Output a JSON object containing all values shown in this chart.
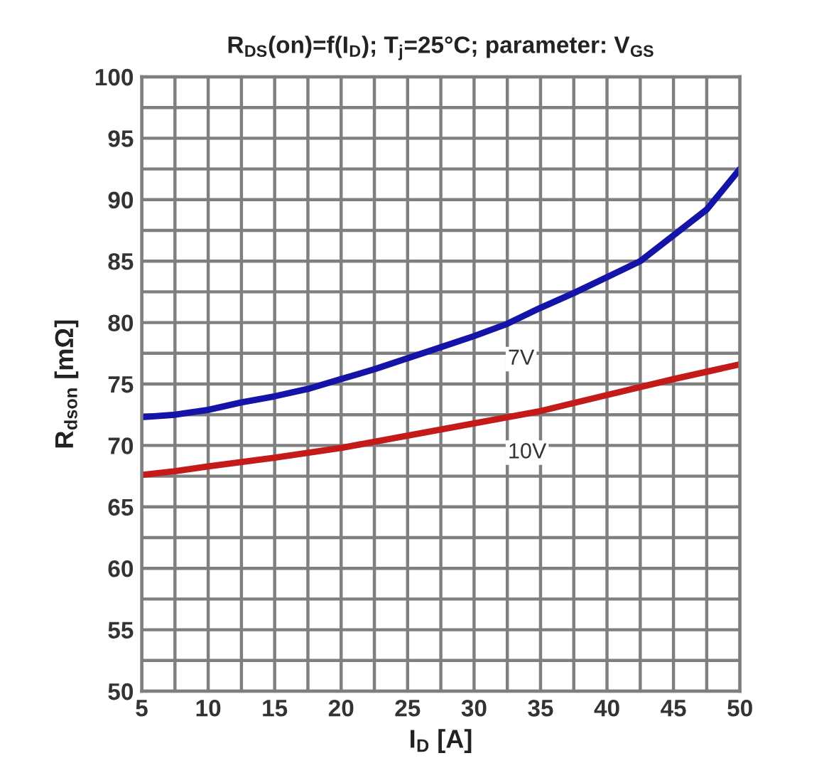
{
  "chart_data": {
    "type": "line",
    "title": "R$_{DS}$(on)=f(I$_{D}$); T$_{j}$=25°C; parameter: V$_{GS}$",
    "xlabel": "I$_{D}$ [A]",
    "ylabel": "R$_{dson}$ [mΩ]",
    "series": [
      {
        "name": "7V",
        "color": "#1414a8",
        "x": [
          5,
          7.5,
          10,
          12.5,
          15,
          17.5,
          20,
          22.5,
          25,
          27.5,
          30,
          32.5,
          35,
          37.5,
          40,
          42.5,
          45,
          47.5,
          50
        ],
        "values": [
          72.3,
          72.5,
          72.9,
          73.5,
          74.0,
          74.6,
          75.4,
          76.2,
          77.1,
          78.0,
          78.9,
          79.9,
          81.2,
          82.4,
          83.7,
          85.0,
          87.1,
          89.2,
          92.5
        ]
      },
      {
        "name": "10V",
        "color": "#c41a1a",
        "x": [
          5,
          7.5,
          10,
          15,
          20,
          25,
          30,
          35,
          40,
          45,
          50
        ],
        "values": [
          67.6,
          67.9,
          68.3,
          69.0,
          69.8,
          70.8,
          71.8,
          72.8,
          74.1,
          75.4,
          76.6
        ]
      }
    ],
    "xlim": [
      5,
      50
    ],
    "ylim": [
      50,
      100
    ],
    "xticks": [
      5,
      {
        "value": 7.5,
        "label": null
      },
      10,
      {
        "value": 12.5,
        "label": null
      },
      15,
      {
        "value": 17.5,
        "label": null
      },
      20,
      {
        "value": 22.5,
        "label": null
      },
      25,
      {
        "value": 27.5,
        "label": null
      },
      30,
      {
        "value": 32.5,
        "label": null
      },
      35,
      {
        "value": 37.5,
        "label": null
      },
      40,
      {
        "value": 42.5,
        "label": null
      },
      45,
      {
        "value": 47.5,
        "label": null
      },
      50
    ],
    "yticks": [
      50,
      {
        "value": 52.5,
        "label": null
      },
      55,
      {
        "value": 57.5,
        "label": null
      },
      60,
      {
        "value": 62.5,
        "label": null
      },
      65,
      {
        "value": 67.5,
        "label": null
      },
      70,
      {
        "value": 72.5,
        "label": null
      },
      75,
      {
        "value": 77.5,
        "label": null
      },
      80,
      {
        "value": 82.5,
        "label": null
      },
      85,
      {
        "value": 87.5,
        "label": null
      },
      90,
      {
        "value": 92.5,
        "label": null
      },
      95,
      {
        "value": 97.5,
        "label": null
      },
      100
    ],
    "grid": true
  }
}
